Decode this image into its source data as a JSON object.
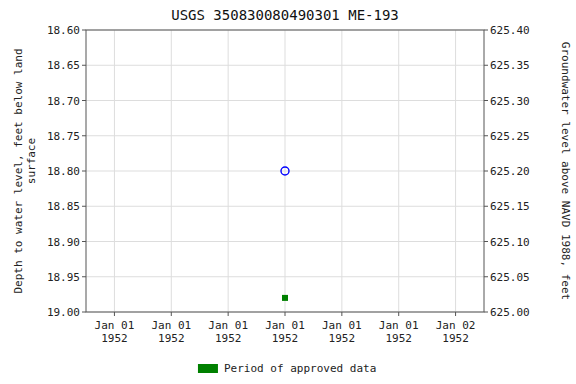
{
  "chart_data": {
    "type": "scatter",
    "title": "USGS 350830080490301 ME-193",
    "y_label": "Depth to water level, feet below land\n   surface",
    "y2_label": "Groundwater level above NAVD 1988, feet",
    "categories": [
      "Jan 01\n1952",
      "Jan 01\n1952",
      "Jan 01\n1952",
      "Jan 01\n1952",
      "Jan 01\n1952",
      "Jan 01\n1952",
      "Jan 02\n1952"
    ],
    "series": [
      {
        "color": "#0000ff",
        "marker": "open-circle",
        "values": [
          null,
          null,
          null,
          18.8,
          null,
          null,
          null
        ]
      },
      {
        "name": "Period of approved data",
        "color": "#008000",
        "marker": "square",
        "values": [
          null,
          null,
          null,
          18.98,
          null,
          null,
          null
        ]
      }
    ],
    "ylim": [
      19.0,
      18.6
    ],
    "yticks": [
      {
        "value": 18.6,
        "label": "18.60"
      },
      18.65,
      {
        "value": 18.7,
        "label": "18.70"
      },
      18.75,
      {
        "value": 18.8,
        "label": "18.80"
      },
      18.85,
      {
        "value": 18.9,
        "label": "18.90"
      },
      18.95,
      {
        "value": 19.0,
        "label": "19.00"
      }
    ],
    "y2lim": [
      625.0,
      625.4
    ],
    "y2ticks": [
      {
        "value": 625.0,
        "label": "625.00"
      },
      625.05,
      {
        "value": 625.1,
        "label": "625.10"
      },
      625.15,
      {
        "value": 625.2,
        "label": "625.20"
      },
      625.25,
      {
        "value": 625.3,
        "label": "625.30"
      },
      625.35,
      {
        "value": 625.4,
        "label": "625.40"
      }
    ],
    "grid": true,
    "legend": "bottom"
  }
}
